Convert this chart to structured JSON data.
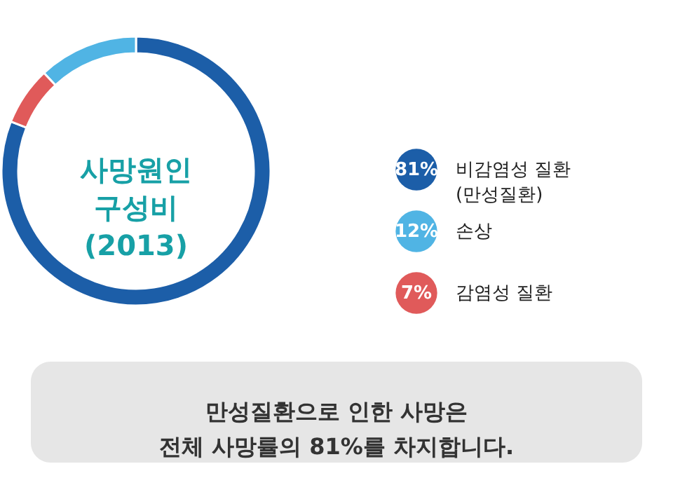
{
  "chart_data": {
    "type": "donut",
    "title": "사망원인 구성비 (2013)",
    "categories": [
      "비감염성 질환\n(만성질환)",
      "손상",
      "감염성 질환"
    ],
    "values": [
      81,
      12,
      7
    ],
    "colors": [
      "#1c5ea8",
      "#50b4e4",
      "#e05a5a"
    ],
    "value_labels": [
      "81%",
      "12%",
      "7%"
    ],
    "legend": "right",
    "annotations": [
      "만성질환으로 인한 사망은\n전체 사망률의 81%를 차지합니다."
    ]
  }
}
